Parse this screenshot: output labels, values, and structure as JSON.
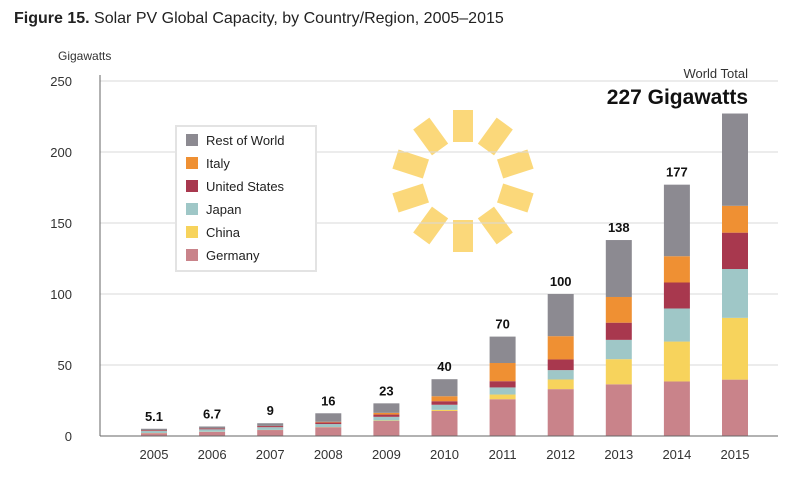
{
  "figure": {
    "number": "Figure 15.",
    "title": "Solar PV Global Capacity, by Country/Region, 2005–2015"
  },
  "chart_data": {
    "type": "bar",
    "stacked": true,
    "ylabel": "Gigawatts",
    "ylim": [
      0,
      250
    ],
    "yticks": [
      0,
      50,
      100,
      150,
      200,
      250
    ],
    "grid": true,
    "legend_position": "top-left",
    "categories": [
      "2005",
      "2006",
      "2007",
      "2008",
      "2009",
      "2010",
      "2011",
      "2012",
      "2013",
      "2014",
      "2015"
    ],
    "totals_labels": [
      "5.1",
      "6.7",
      "9",
      "16",
      "23",
      "40",
      "70",
      "100",
      "138",
      "177",
      ""
    ],
    "series": [
      {
        "name": "Germany",
        "color": "#c9838a",
        "values": [
          2.0,
          2.9,
          4.2,
          6.2,
          10.6,
          17.6,
          25.9,
          33.0,
          36.4,
          38.4,
          39.7
        ]
      },
      {
        "name": "China",
        "color": "#f7d35c",
        "values": [
          0.1,
          0.1,
          0.1,
          0.1,
          0.3,
          0.8,
          3.3,
          6.8,
          17.7,
          28.1,
          43.5
        ]
      },
      {
        "name": "Japan",
        "color": "#9fc7c7",
        "values": [
          1.4,
          1.7,
          1.9,
          2.1,
          2.6,
          3.6,
          5.0,
          6.6,
          13.6,
          23.3,
          34.4
        ]
      },
      {
        "name": "United States",
        "color": "#a8384e",
        "values": [
          0.5,
          0.6,
          0.8,
          1.2,
          1.6,
          2.5,
          4.4,
          7.5,
          12.1,
          18.3,
          25.6
        ]
      },
      {
        "name": "Italy",
        "color": "#ef9033",
        "values": [
          0.1,
          0.1,
          0.1,
          0.4,
          1.2,
          3.5,
          12.8,
          16.4,
          18.1,
          18.5,
          18.9
        ]
      },
      {
        "name": "Rest of World",
        "color": "#8c8a91",
        "values": [
          1.0,
          1.3,
          1.9,
          6.0,
          6.7,
          12.0,
          18.6,
          29.7,
          40.1,
          50.4,
          65.0
        ]
      }
    ],
    "legend_order": [
      "Rest of World",
      "Italy",
      "United States",
      "Japan",
      "China",
      "Germany"
    ],
    "annotation": {
      "label": "World Total",
      "value": "227 Gigawatts"
    }
  },
  "decoration": {
    "sun_color": "#fbd87a",
    "sun_rays": 10
  }
}
